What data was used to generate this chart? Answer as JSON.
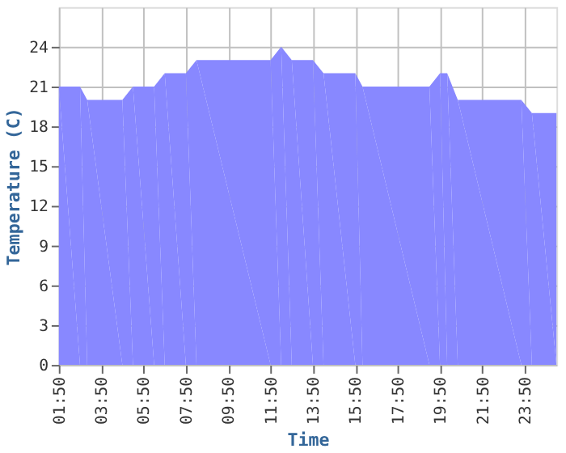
{
  "chart_data": {
    "type": "area",
    "xlabel": "Time",
    "ylabel": "Temperature (C)",
    "x": [
      1.83,
      2.83,
      3.17,
      4.83,
      5.33,
      6.33,
      6.83,
      7.83,
      8.33,
      11.83,
      12.33,
      12.83,
      13.83,
      14.33,
      15.83,
      16.17,
      19.33,
      19.83,
      20.17,
      20.67,
      23.67,
      24.17,
      25.33
    ],
    "series": [
      {
        "color": "#8888ff",
        "values": [
          21,
          21,
          20,
          20,
          21,
          21,
          22,
          22,
          23,
          23,
          24,
          23,
          23,
          22,
          22,
          21,
          21,
          22,
          22,
          20,
          20,
          19,
          19
        ]
      }
    ],
    "xlim": [
      1.83,
      25.33
    ],
    "xticks": [
      {
        "value": 1.8333,
        "label": "01:50"
      },
      {
        "value": 3.8333,
        "label": "03:50"
      },
      {
        "value": 5.8333,
        "label": "05:50"
      },
      {
        "value": 7.8333,
        "label": "07:50"
      },
      {
        "value": 9.8333,
        "label": "09:50"
      },
      {
        "value": 11.8333,
        "label": "11:50"
      },
      {
        "value": 13.8333,
        "label": "13:50"
      },
      {
        "value": 15.8333,
        "label": "15:50"
      },
      {
        "value": 17.8333,
        "label": "17:50"
      },
      {
        "value": 19.8333,
        "label": "19:50"
      },
      {
        "value": 21.8333,
        "label": "21:50"
      },
      {
        "value": 23.8333,
        "label": "23:50"
      }
    ],
    "ylim": [
      0,
      27
    ],
    "yticks": [
      0,
      3,
      6,
      9,
      12,
      15,
      18,
      21,
      24
    ],
    "grid": true
  }
}
